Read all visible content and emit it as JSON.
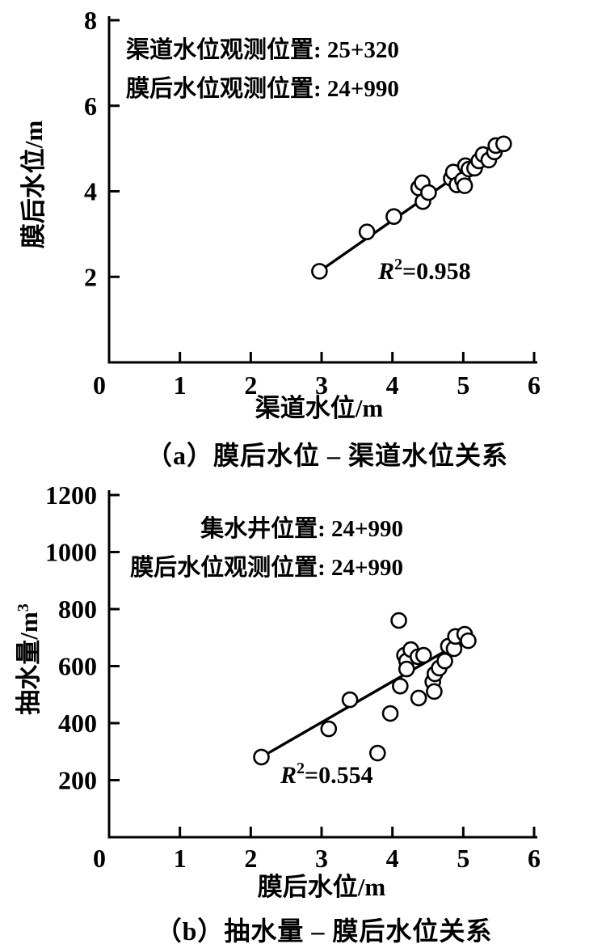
{
  "page": {
    "background": "#ffffff",
    "ink_color": "#000000"
  },
  "chart_data": [
    {
      "type": "scatter",
      "panel": "a",
      "caption": "（a）膜后水位 – 渠道水位关系",
      "xlabel": "渠道水位/m",
      "ylabel": "膜后水位/m",
      "ylabel_sup": "",
      "xlim": [
        0,
        6
      ],
      "ylim": [
        0,
        8
      ],
      "xticks": [
        0,
        1,
        2,
        3,
        4,
        5,
        6
      ],
      "yticks": [
        2,
        4,
        6,
        8
      ],
      "grid": false,
      "annotation_lines": [
        "渠道水位观测位置: 25+320",
        "膜后水位观测位置: 24+990"
      ],
      "r_squared": "0.958",
      "marker": "open-circle",
      "trend": [
        [
          2.97,
          2.13
        ],
        [
          5.5,
          5.05
        ]
      ],
      "points": [
        [
          2.97,
          2.13
        ],
        [
          3.64,
          3.05
        ],
        [
          4.02,
          3.41
        ],
        [
          4.37,
          4.08
        ],
        [
          4.42,
          4.2
        ],
        [
          4.43,
          3.76
        ],
        [
          4.51,
          3.97
        ],
        [
          4.83,
          4.3
        ],
        [
          4.86,
          4.45
        ],
        [
          4.91,
          4.15
        ],
        [
          4.99,
          4.26
        ],
        [
          5.02,
          4.13
        ],
        [
          5.03,
          4.6
        ],
        [
          5.08,
          4.52
        ],
        [
          5.16,
          4.54
        ],
        [
          5.22,
          4.71
        ],
        [
          5.28,
          4.86
        ],
        [
          5.36,
          4.73
        ],
        [
          5.44,
          4.92
        ],
        [
          5.46,
          5.07
        ],
        [
          5.57,
          5.11
        ]
      ]
    },
    {
      "type": "scatter",
      "panel": "b",
      "caption": "（b）抽水量 – 膜后水位关系",
      "xlabel": "膜后水位/m",
      "ylabel": "抽水量/m",
      "ylabel_sup": "3",
      "xlim": [
        0,
        6
      ],
      "ylim": [
        0,
        1200
      ],
      "xticks": [
        0,
        1,
        2,
        3,
        4,
        5,
        6
      ],
      "yticks": [
        200,
        400,
        600,
        800,
        1000,
        1200
      ],
      "grid": false,
      "annotation_lines": [
        "集水井位置: 24+990",
        "膜后水位观测位置: 24+990"
      ],
      "r_squared": "0.554",
      "marker": "open-circle",
      "trend": [
        [
          2.15,
          281
        ],
        [
          4.88,
          672
        ]
      ],
      "points": [
        [
          2.15,
          281
        ],
        [
          3.1,
          380
        ],
        [
          3.4,
          482
        ],
        [
          3.79,
          295
        ],
        [
          3.97,
          434
        ],
        [
          4.09,
          760
        ],
        [
          4.11,
          530
        ],
        [
          4.17,
          638
        ],
        [
          4.2,
          618
        ],
        [
          4.2,
          590
        ],
        [
          4.26,
          658
        ],
        [
          4.36,
          633
        ],
        [
          4.44,
          638
        ],
        [
          4.37,
          488
        ],
        [
          4.57,
          545
        ],
        [
          4.59,
          511
        ],
        [
          4.6,
          573
        ],
        [
          4.66,
          593
        ],
        [
          4.74,
          618
        ],
        [
          4.79,
          670
        ],
        [
          4.87,
          661
        ],
        [
          4.89,
          704
        ],
        [
          5.02,
          712
        ],
        [
          5.07,
          689
        ]
      ]
    }
  ]
}
